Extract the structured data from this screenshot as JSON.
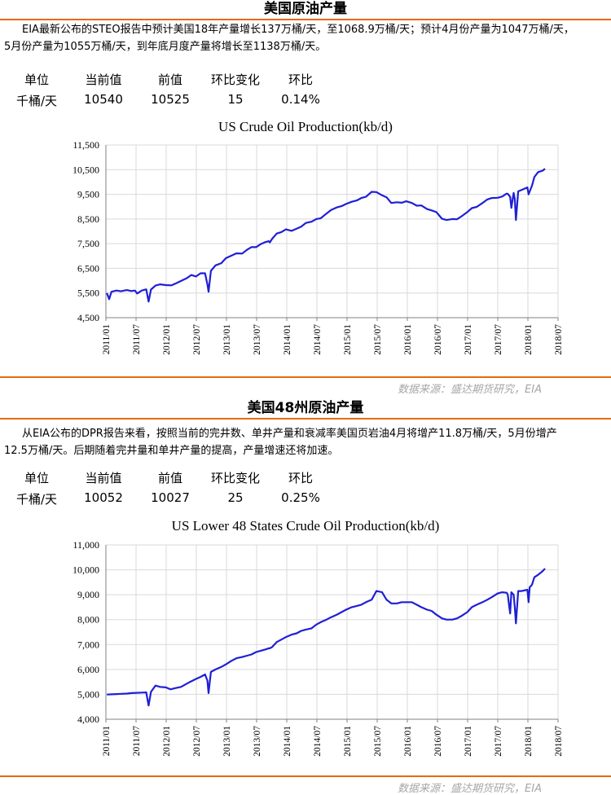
{
  "sections": [
    {
      "title": "美国原油产量",
      "desc_line1": "EIA最新公布的STEO报告中预计美国18年产量增长137万桶/天，至1068.9万桶/天；预计4月份产量为1047万桶/天，",
      "desc_line2": "5月份产量为1055万桶/天，到年底月度产量将增长至1138万桶/天。",
      "stats_headers": [
        "单位",
        "当前值",
        "前值",
        "环比变化",
        "环比"
      ],
      "stats_values": [
        "千桶/天",
        "10540",
        "10525",
        "15",
        "0.14%"
      ],
      "source": "数据来源：盛达期货研究，EIA"
    },
    {
      "title": "美国48州原油产量",
      "desc_line1": "从EIA公布的DPR报告来看，按照当前的完井数、单井产量和衰减率美国页岩油4月将增产11.8万桶/天，5月份增产",
      "desc_line2": "12.5万桶/天。后期随着完井量和单井产量的提高，产量增速还将加速。",
      "stats_headers": [
        "单位",
        "当前值",
        "前值",
        "环比变化",
        "环比"
      ],
      "stats_values": [
        "千桶/天",
        "10052",
        "10027",
        "25",
        "0.25%"
      ],
      "source": "数据来源：盛达期货研究，EIA"
    }
  ],
  "chart_data": [
    {
      "type": "line",
      "title": "US Crude Oil Production(kb/d)",
      "xlabel": "",
      "ylabel": "",
      "ylim": [
        4500,
        11500
      ],
      "yticks": [
        4500,
        5500,
        6500,
        7500,
        8500,
        9500,
        10500,
        11500
      ],
      "ytick_labels": [
        "4,500",
        "5,500",
        "6,500",
        "7,500",
        "8,500",
        "9,500",
        "10,500",
        "11,500"
      ],
      "xlim": [
        "2011/01",
        "2018/07"
      ],
      "xtick_labels": [
        "2011/01",
        "2011/07",
        "2012/01",
        "2012/07",
        "2013/01",
        "2013/07",
        "2014/01",
        "2014/07",
        "2015/01",
        "2015/07",
        "2016/01",
        "2016/07",
        "2017/01",
        "2017/07",
        "2018/01",
        "2018/07"
      ],
      "grid": true,
      "legend": "none",
      "line_color": "#1f1fd6",
      "series": [
        {
          "x": [
            "2011-01-07",
            "2011-01-21",
            "2011-02-04",
            "2011-03-04",
            "2011-04-01",
            "2011-05-06",
            "2011-06-03",
            "2011-06-24",
            "2011-07-08",
            "2011-08-05",
            "2011-09-02",
            "2011-09-16",
            "2011-09-30",
            "2011-10-28",
            "2011-11-25",
            "2011-12-30",
            "2012-02-03",
            "2012-03-02",
            "2012-04-06",
            "2012-05-04",
            "2012-06-01",
            "2012-06-29",
            "2012-07-27",
            "2012-08-24",
            "2012-09-07",
            "2012-09-14",
            "2012-09-28",
            "2012-10-26",
            "2012-11-30",
            "2012-12-28",
            "2013-02-01",
            "2013-03-01",
            "2013-04-05",
            "2013-05-03",
            "2013-05-31",
            "2013-06-28",
            "2013-07-26",
            "2013-08-23",
            "2013-09-13",
            "2013-09-20",
            "2013-10-04",
            "2013-11-01",
            "2013-11-29",
            "2013-12-27",
            "2014-01-31",
            "2014-02-28",
            "2014-03-28",
            "2014-04-25",
            "2014-05-30",
            "2014-06-27",
            "2014-07-25",
            "2014-08-29",
            "2014-09-26",
            "2014-10-31",
            "2014-11-28",
            "2014-12-26",
            "2015-01-30",
            "2015-02-27",
            "2015-03-27",
            "2015-04-24",
            "2015-05-29",
            "2015-06-26",
            "2015-07-31",
            "2015-08-28",
            "2015-09-25",
            "2015-10-30",
            "2015-11-27",
            "2015-12-25",
            "2016-01-29",
            "2016-02-26",
            "2016-03-25",
            "2016-04-29",
            "2016-05-27",
            "2016-06-24",
            "2016-07-29",
            "2016-08-26",
            "2016-09-30",
            "2016-10-28",
            "2016-11-25",
            "2016-12-30",
            "2017-01-27",
            "2017-02-24",
            "2017-03-31",
            "2017-04-28",
            "2017-05-26",
            "2017-06-30",
            "2017-07-28",
            "2017-08-25",
            "2017-09-01",
            "2017-09-15",
            "2017-09-22",
            "2017-10-06",
            "2017-10-13",
            "2017-10-20",
            "2017-11-03",
            "2017-11-24",
            "2017-12-29",
            "2018-01-05",
            "2018-01-26",
            "2018-02-09",
            "2018-03-02",
            "2018-03-30",
            "2018-04-13"
          ],
          "y": [
            5500,
            5250,
            5550,
            5600,
            5570,
            5620,
            5580,
            5600,
            5480,
            5600,
            5650,
            5150,
            5640,
            5800,
            5850,
            5820,
            5810,
            5900,
            6010,
            6100,
            6230,
            6170,
            6300,
            6300,
            5850,
            5550,
            6400,
            6620,
            6710,
            6910,
            7020,
            7110,
            7100,
            7250,
            7360,
            7360,
            7480,
            7560,
            7600,
            7550,
            7700,
            7910,
            7970,
            8080,
            8020,
            8110,
            8190,
            8340,
            8390,
            8500,
            8530,
            8720,
            8870,
            8970,
            9020,
            9110,
            9200,
            9250,
            9350,
            9400,
            9600,
            9590,
            9460,
            9380,
            9150,
            9180,
            9160,
            9220,
            9150,
            9040,
            9050,
            8900,
            8850,
            8780,
            8510,
            8460,
            8500,
            8490,
            8610,
            8780,
            8940,
            8990,
            9150,
            9290,
            9350,
            9360,
            9410,
            9530,
            9520,
            9400,
            8950,
            9560,
            9300,
            8460,
            9620,
            9680,
            9780,
            9500,
            9850,
            10200,
            10400,
            10460,
            10540
          ]
        }
      ]
    },
    {
      "type": "line",
      "title": "US Lower 48 States Crude Oil Production(kb/d)",
      "xlabel": "",
      "ylabel": "",
      "ylim": [
        4000,
        11000
      ],
      "yticks": [
        4000,
        5000,
        6000,
        7000,
        8000,
        9000,
        10000,
        11000
      ],
      "ytick_labels": [
        "4,000",
        "5,000",
        "6,000",
        "7,000",
        "8,000",
        "9,000",
        "10,000",
        "11,000"
      ],
      "xlim": [
        "2011/01",
        "2018/07"
      ],
      "xtick_labels": [
        "2011/01",
        "2011/07",
        "2012/01",
        "2012/07",
        "2013/01",
        "2013/07",
        "2014/01",
        "2014/07",
        "2015/01",
        "2015/07",
        "2016/01",
        "2016/07",
        "2017/01",
        "2017/07",
        "2018/01",
        "2018/07"
      ],
      "grid": true,
      "legend": "none",
      "line_color": "#1f1fd6",
      "series": [
        {
          "x": [
            "2011-01-07",
            "2011-02-04",
            "2011-03-04",
            "2011-04-01",
            "2011-05-06",
            "2011-06-03",
            "2011-07-01",
            "2011-08-05",
            "2011-09-02",
            "2011-09-16",
            "2011-09-30",
            "2011-10-28",
            "2011-11-25",
            "2011-12-30",
            "2012-01-27",
            "2012-02-24",
            "2012-03-30",
            "2012-04-27",
            "2012-05-25",
            "2012-06-29",
            "2012-07-27",
            "2012-08-24",
            "2012-09-07",
            "2012-09-14",
            "2012-09-28",
            "2012-10-26",
            "2012-11-30",
            "2012-12-28",
            "2013-02-01",
            "2013-03-01",
            "2013-04-05",
            "2013-05-03",
            "2013-05-31",
            "2013-06-28",
            "2013-07-26",
            "2013-08-23",
            "2013-09-13",
            "2013-09-20",
            "2013-10-04",
            "2013-11-01",
            "2013-11-29",
            "2013-12-27",
            "2014-01-31",
            "2014-02-28",
            "2014-03-28",
            "2014-04-25",
            "2014-05-30",
            "2014-06-27",
            "2014-07-25",
            "2014-08-29",
            "2014-09-26",
            "2014-10-31",
            "2014-11-28",
            "2014-12-26",
            "2015-01-30",
            "2015-02-27",
            "2015-03-27",
            "2015-04-24",
            "2015-05-29",
            "2015-06-26",
            "2015-07-31",
            "2015-08-28",
            "2015-09-25",
            "2015-10-30",
            "2015-11-27",
            "2015-12-25",
            "2016-01-29",
            "2016-02-26",
            "2016-03-25",
            "2016-04-29",
            "2016-05-27",
            "2016-06-24",
            "2016-07-29",
            "2016-08-26",
            "2016-09-30",
            "2016-10-28",
            "2016-11-25",
            "2016-12-30",
            "2017-01-27",
            "2017-02-24",
            "2017-03-31",
            "2017-04-28",
            "2017-05-26",
            "2017-06-30",
            "2017-07-28",
            "2017-08-25",
            "2017-09-01",
            "2017-09-08",
            "2017-09-15",
            "2017-09-22",
            "2017-10-06",
            "2017-10-13",
            "2017-10-20",
            "2017-11-03",
            "2017-11-24",
            "2017-12-29",
            "2018-01-05",
            "2018-01-12",
            "2018-01-26",
            "2018-02-09",
            "2018-03-02",
            "2018-03-30",
            "2018-04-13"
          ],
          "y": [
            4990,
            5000,
            5010,
            5020,
            5030,
            5050,
            5060,
            5070,
            5080,
            4550,
            5100,
            5350,
            5300,
            5280,
            5200,
            5250,
            5300,
            5400,
            5500,
            5620,
            5700,
            5800,
            5550,
            5050,
            5900,
            6000,
            6100,
            6200,
            6350,
            6450,
            6500,
            6550,
            6600,
            6700,
            6750,
            6800,
            6850,
            6850,
            6900,
            7100,
            7200,
            7300,
            7400,
            7450,
            7550,
            7600,
            7650,
            7800,
            7900,
            8000,
            8100,
            8200,
            8300,
            8400,
            8500,
            8550,
            8600,
            8700,
            8800,
            9150,
            9100,
            8800,
            8650,
            8650,
            8700,
            8700,
            8700,
            8600,
            8500,
            8400,
            8350,
            8200,
            8050,
            8000,
            8000,
            8050,
            8150,
            8300,
            8500,
            8600,
            8700,
            8800,
            8900,
            9050,
            9100,
            9080,
            9000,
            8600,
            8250,
            9100,
            9000,
            8500,
            7850,
            9150,
            9150,
            9200,
            8700,
            9300,
            9400,
            9700,
            9800,
            9950,
            10050
          ]
        }
      ]
    }
  ]
}
